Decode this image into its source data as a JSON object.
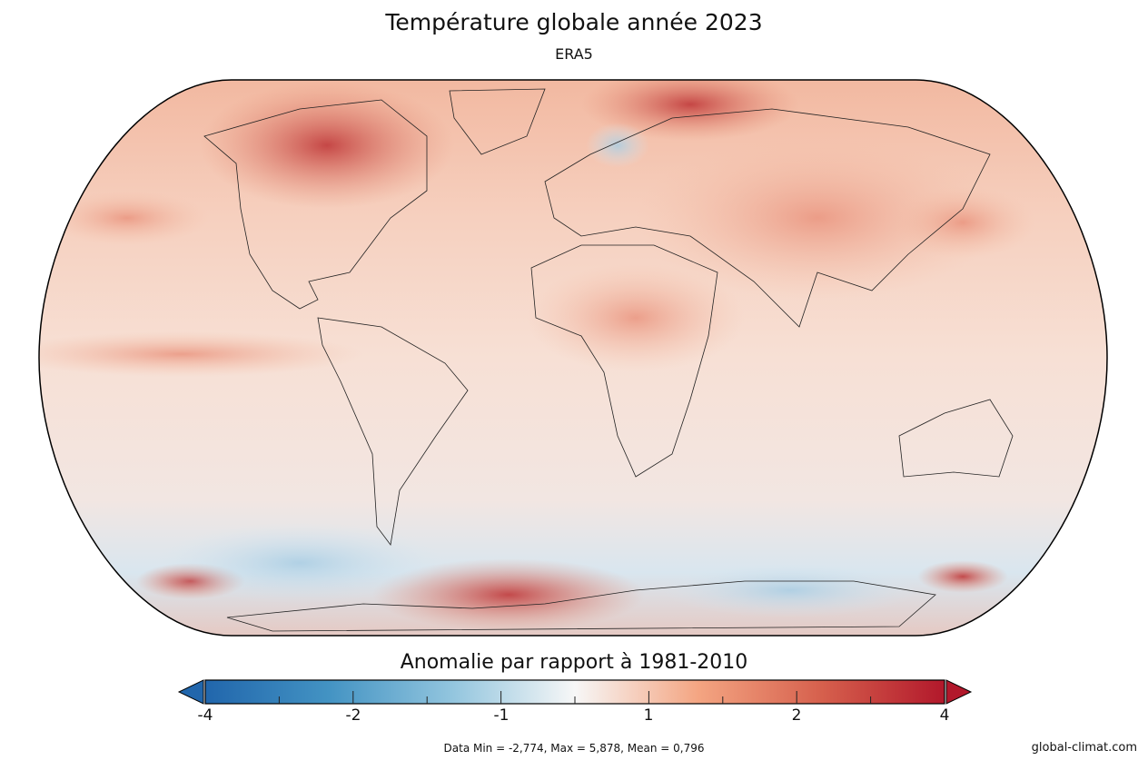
{
  "title": "Température globale année 2023",
  "subtitle": "ERA5",
  "colorbar": {
    "title": "Anomalie par rapport à 1981-2010",
    "ticks": [
      "-4",
      "-2",
      "-1",
      "1",
      "2",
      "4"
    ],
    "colors": [
      "#2166ac",
      "#4393c3",
      "#92c5de",
      "#f7f7f7",
      "#f4a582",
      "#d6604d",
      "#b2182b"
    ],
    "extend": "both"
  },
  "stats": "Data Min = -2,774, Max = 5,878, Mean = 0,796",
  "credit": "global-climat.com",
  "projection": "Robinson"
}
